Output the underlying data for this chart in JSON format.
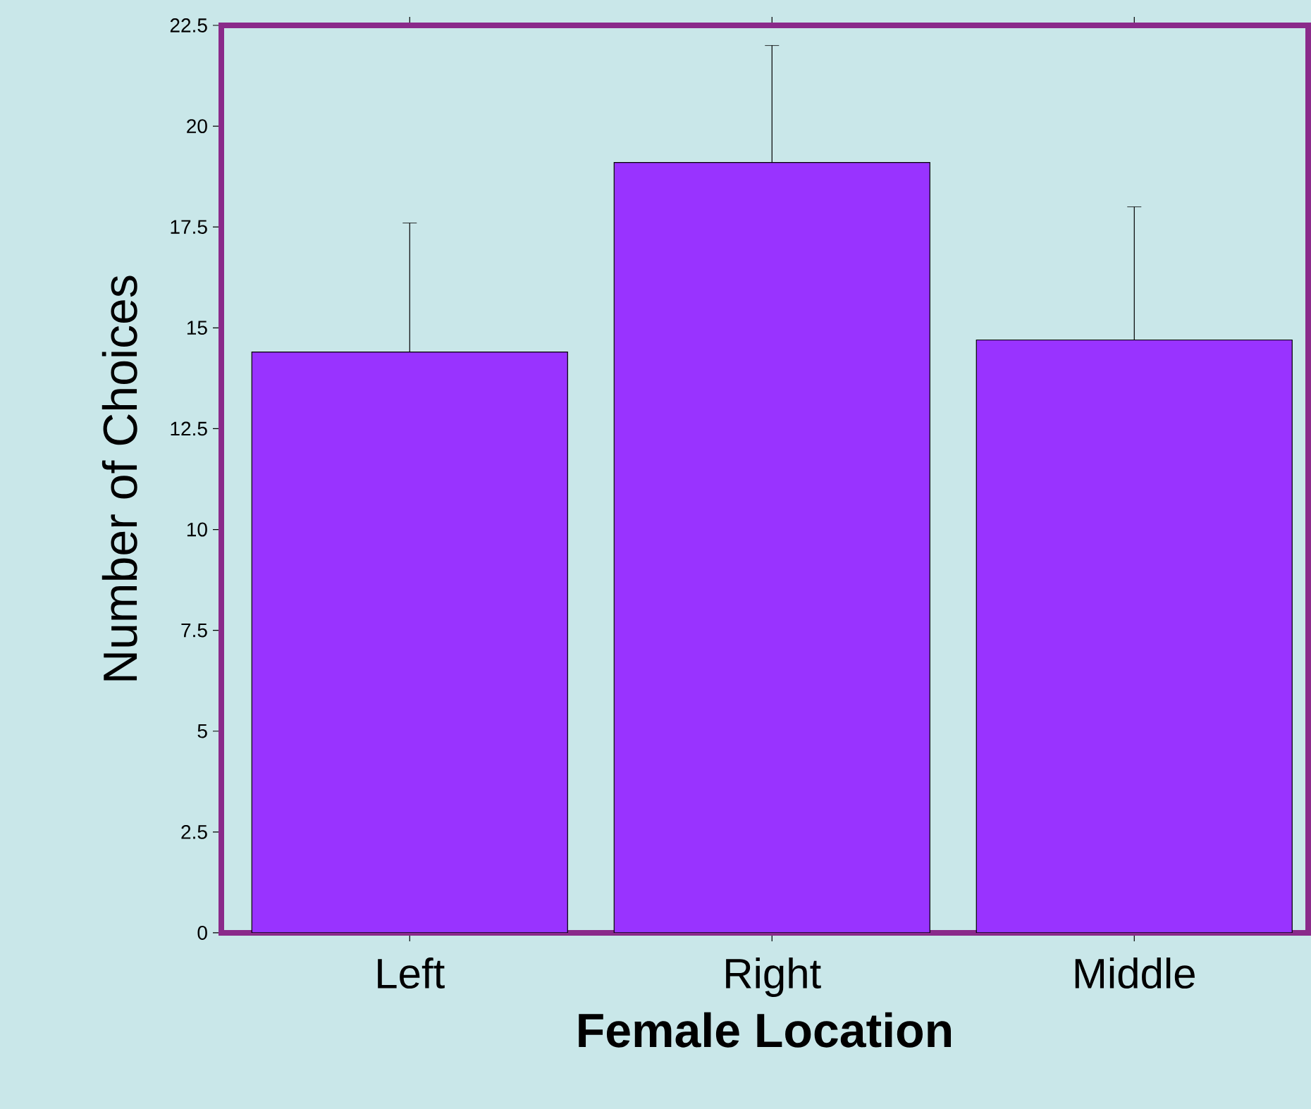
{
  "chart_data": {
    "type": "bar",
    "xlabel": "Female Location",
    "ylabel": "Number of Choices",
    "categories": [
      "Left",
      "Right",
      "Middle"
    ],
    "values": [
      14.4,
      19.1,
      14.7
    ],
    "errors": [
      [
        14.4,
        17.6
      ],
      [
        19.1,
        22.0
      ],
      [
        14.7,
        18.0
      ]
    ],
    "color": "#9933ff",
    "ylim": [
      0,
      22.5
    ],
    "yticks": [
      0,
      2.5,
      5,
      7.5,
      10,
      12.5,
      15,
      17.5,
      20,
      22.5
    ]
  }
}
